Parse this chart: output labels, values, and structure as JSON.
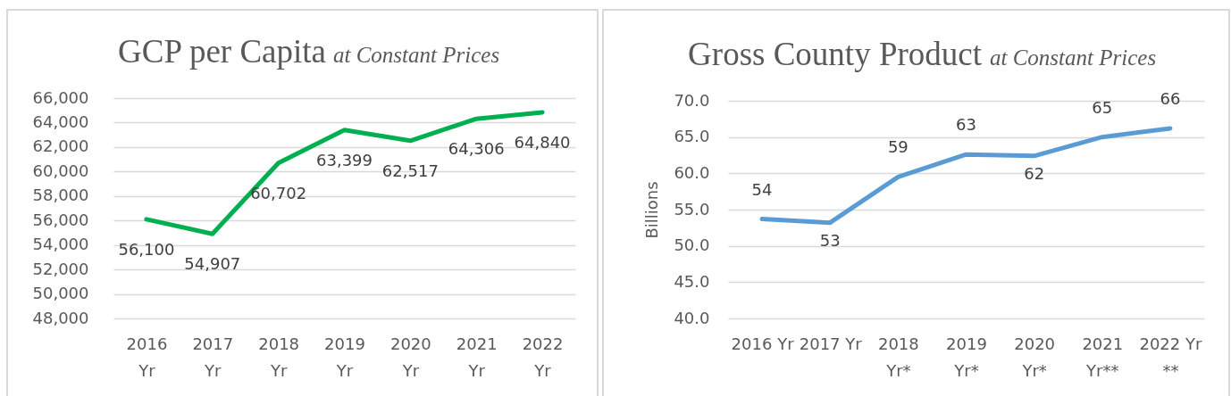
{
  "chart_data": [
    {
      "type": "line",
      "title": "GCP per Capita",
      "subtitle": "at Constant Prices",
      "categories": [
        "2016 Yr",
        "2017 Yr",
        "2018 Yr",
        "2019 Yr",
        "2020 Yr",
        "2021 Yr",
        "2022 Yr"
      ],
      "series": [
        {
          "color": "#00b050",
          "values": [
            56100,
            54907,
            60702,
            63399,
            62517,
            64306,
            64840
          ],
          "value_labels": [
            "56,100",
            "54,907",
            "60,702",
            "63,399",
            "62,517",
            "64,306",
            "64,840"
          ]
        }
      ],
      "ylim": [
        48000,
        66000
      ],
      "yticks": [
        {
          "value": 48000,
          "label": "48,000"
        },
        {
          "value": 50000,
          "label": "50,000"
        },
        {
          "value": 52000,
          "label": "52,000"
        },
        {
          "value": 54000,
          "label": "54,000"
        },
        {
          "value": 56000,
          "label": "56,000"
        },
        {
          "value": 58000,
          "label": "58,000"
        },
        {
          "value": 60000,
          "label": "60,000"
        },
        {
          "value": 62000,
          "label": "62,000"
        },
        {
          "value": 64000,
          "label": "64,000"
        },
        {
          "value": 66000,
          "label": "66,000"
        }
      ],
      "grid": "y"
    },
    {
      "type": "line",
      "title": "Gross County Product",
      "subtitle": "at Constant Prices",
      "ylabel": "Billions",
      "categories": [
        "2016 Yr",
        "2017 Yr",
        "2018 Yr*",
        "2019 Yr*",
        "2020 Yr*",
        "2021 Yr**",
        "2022 Yr **"
      ],
      "series": [
        {
          "color": "#5b9bd5",
          "values": [
            53.7,
            53.2,
            59.5,
            62.6,
            62.4,
            65.0,
            66.2
          ],
          "value_labels": [
            "54",
            "53",
            "59",
            "63",
            "62",
            "65",
            "66"
          ]
        }
      ],
      "ylim": [
        40,
        70
      ],
      "yticks": [
        {
          "value": 40,
          "label": "40.0"
        },
        {
          "value": 45,
          "label": "45.0"
        },
        {
          "value": 50,
          "label": "50.0"
        },
        {
          "value": 55,
          "label": "55.0"
        },
        {
          "value": 60,
          "label": "60.0"
        },
        {
          "value": 65,
          "label": "65.0"
        },
        {
          "value": 70,
          "label": "70.0"
        }
      ],
      "grid": "y"
    }
  ]
}
